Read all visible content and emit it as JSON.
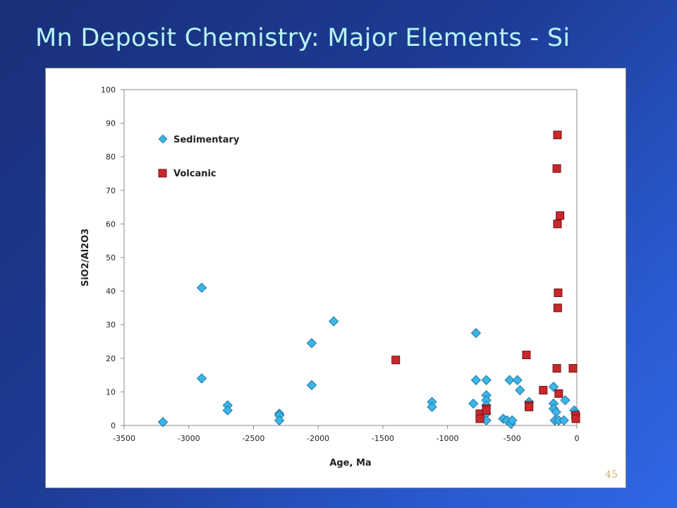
{
  "slide": {
    "title": "Mn Deposit Chemistry: Major Elements - Si",
    "page_number": "45"
  },
  "colors": {
    "background": "#1f3e9c",
    "title": "#b6f4f6",
    "sedimentary": "#3cb4e6",
    "volcanic": "#c8282c",
    "page_number": "#c9b06a"
  },
  "chart_data": {
    "type": "scatter",
    "xlabel": "Age, Ma",
    "ylabel": "SiO2/Al2O3",
    "xlim": [
      -3500,
      0
    ],
    "ylim": [
      0,
      100
    ],
    "xticks": [
      -3500,
      -3000,
      -2500,
      -2000,
      -1500,
      -1000,
      -500,
      0
    ],
    "yticks": [
      0,
      10,
      20,
      30,
      40,
      50,
      60,
      70,
      80,
      90,
      100
    ],
    "grid": false,
    "legend_position": "top-left",
    "series": [
      {
        "name": "Sedimentary",
        "marker": "diamond",
        "color": "#3cb4e6",
        "points": [
          [
            -3200,
            1
          ],
          [
            -2900,
            41
          ],
          [
            -2900,
            14
          ],
          [
            -2700,
            6
          ],
          [
            -2700,
            4.5
          ],
          [
            -2300,
            3.5
          ],
          [
            -2300,
            3
          ],
          [
            -2300,
            1.5
          ],
          [
            -2050,
            24.5
          ],
          [
            -2050,
            12
          ],
          [
            -1880,
            31
          ],
          [
            -1120,
            7
          ],
          [
            -1120,
            5.5
          ],
          [
            -800,
            6.5
          ],
          [
            -780,
            27.5
          ],
          [
            -780,
            13.5
          ],
          [
            -700,
            13.5
          ],
          [
            -700,
            9
          ],
          [
            -700,
            7.5
          ],
          [
            -700,
            6
          ],
          [
            -700,
            3.5
          ],
          [
            -700,
            1.5
          ],
          [
            -570,
            2
          ],
          [
            -540,
            1.5
          ],
          [
            -520,
            13.5
          ],
          [
            -510,
            0.5
          ],
          [
            -500,
            1.5
          ],
          [
            -460,
            13.5
          ],
          [
            -440,
            10.5
          ],
          [
            -370,
            7
          ],
          [
            -180,
            11.5
          ],
          [
            -180,
            6.5
          ],
          [
            -180,
            5
          ],
          [
            -170,
            1.5
          ],
          [
            -160,
            4
          ],
          [
            -140,
            1.5
          ],
          [
            -100,
            1.5
          ],
          [
            -90,
            7.5
          ],
          [
            -20,
            4.5
          ],
          [
            -10,
            3.5
          ]
        ]
      },
      {
        "name": "Volcanic",
        "marker": "square",
        "color": "#c8282c",
        "points": [
          [
            -1400,
            19.5
          ],
          [
            -750,
            3.5
          ],
          [
            -750,
            2
          ],
          [
            -700,
            5
          ],
          [
            -700,
            4.5
          ],
          [
            -390,
            21
          ],
          [
            -370,
            6
          ],
          [
            -370,
            5.5
          ],
          [
            -260,
            10.5
          ],
          [
            -150,
            86.5
          ],
          [
            -155,
            76.5
          ],
          [
            -130,
            62.5
          ],
          [
            -150,
            60
          ],
          [
            -145,
            39.5
          ],
          [
            -148,
            35
          ],
          [
            -155,
            17
          ],
          [
            -140,
            9.5
          ],
          [
            -30,
            17
          ],
          [
            -10,
            3
          ],
          [
            -8,
            2
          ]
        ]
      }
    ]
  }
}
